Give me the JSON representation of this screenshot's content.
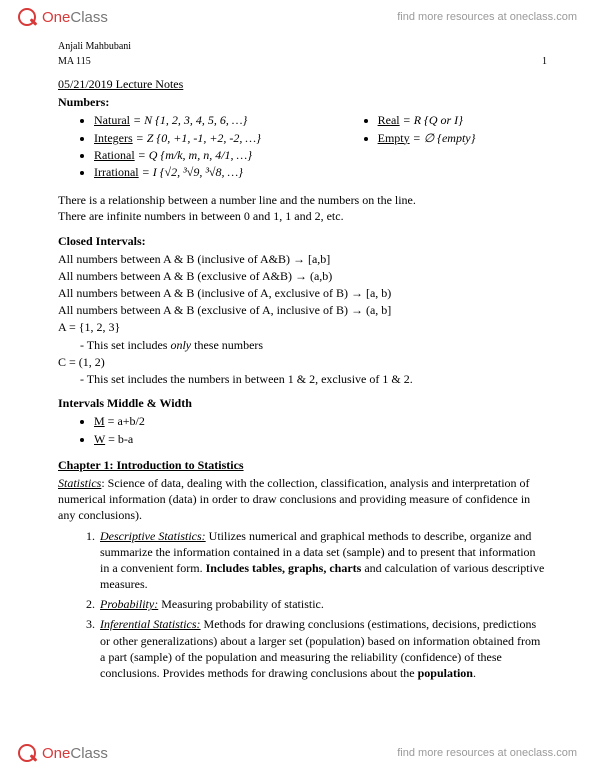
{
  "header": {
    "brand_one": "One",
    "brand_class": "Class",
    "link": "find more resources at oneclass.com"
  },
  "meta": {
    "author": "Anjali Mahbubani",
    "course": "MA 115",
    "page_num": "1"
  },
  "lecture_title": "05/21/2019 Lecture Notes",
  "numbers": {
    "heading": "Numbers:",
    "left": [
      {
        "label": "Natural",
        "rest": " = N {1, 2, 3, 4, 5, 6, …}"
      },
      {
        "label": "Integers",
        "rest": " = Z {0, +1, -1, +2, -2, …}"
      },
      {
        "label": "Rational",
        "rest": " = Q {m/k, m, n, 4/1, …}"
      },
      {
        "label": "Irrational",
        "rest": " = I {√2, ³√9, ³√8, …}"
      }
    ],
    "right": [
      {
        "label": "Real",
        "rest": " = R {Q or I}"
      },
      {
        "label": "Empty",
        "rest": " = ∅ {empty}"
      }
    ]
  },
  "relation_p1": "There is a relationship between a number line and the numbers on the line.",
  "relation_p2": "There are infinite numbers in between 0 and 1, 1 and 2, etc.",
  "closed": {
    "heading": "Closed Intervals:",
    "lines": [
      "All numbers between A & B (inclusive of A&B) → [a,b]",
      "All numbers between A & B (exclusive of A&B) → (a,b)",
      "All numbers between A & B (inclusive of A, exclusive of B) → [a, b)",
      "All numbers between A & B (exclusive of A, inclusive of B) → (a, b]"
    ],
    "setA": "A = {1, 2, 3}",
    "setA_note_pre": "This set includes ",
    "setA_note_em": "only",
    "setA_note_post": " these numbers",
    "setC": "C = (1, 2)",
    "setC_note": "This set includes the numbers in between 1 & 2, exclusive of 1 & 2."
  },
  "midwidth": {
    "heading": "Intervals Middle & Width",
    "m_label": "M",
    "m_rest": " = a+b/2",
    "w_label": "W",
    "w_rest": " = b-a"
  },
  "chapter": {
    "heading": "Chapter 1: Introduction to Statistics",
    "stats_label": "Statistics",
    "stats_def": ": Science of data, dealing with the collection, classification, analysis and interpretation of numerical information (data) in order to draw conclusions and providing measure of confidence in any conclusions).",
    "items": [
      {
        "label": "Descriptive Statistics:",
        "body_pre": " Utilizes numerical and graphical methods to describe, organize and summarize the information contained in a data set (sample) and to present that information in a convenient form. ",
        "body_bold": "Includes tables, graphs, charts",
        "body_post": " and calculation of various descriptive measures."
      },
      {
        "label": "Probability:",
        "body_pre": " Measuring probability of statistic.",
        "body_bold": "",
        "body_post": ""
      },
      {
        "label": "Inferential Statistics:",
        "body_pre": " Methods for drawing conclusions (estimations, decisions, predictions or other generalizations) about a larger set (population) based on information obtained from a part (sample) of the population and measuring the reliability (confidence) of these conclusions. Provides methods for drawing conclusions about the ",
        "body_bold": "population",
        "body_post": "."
      }
    ]
  }
}
